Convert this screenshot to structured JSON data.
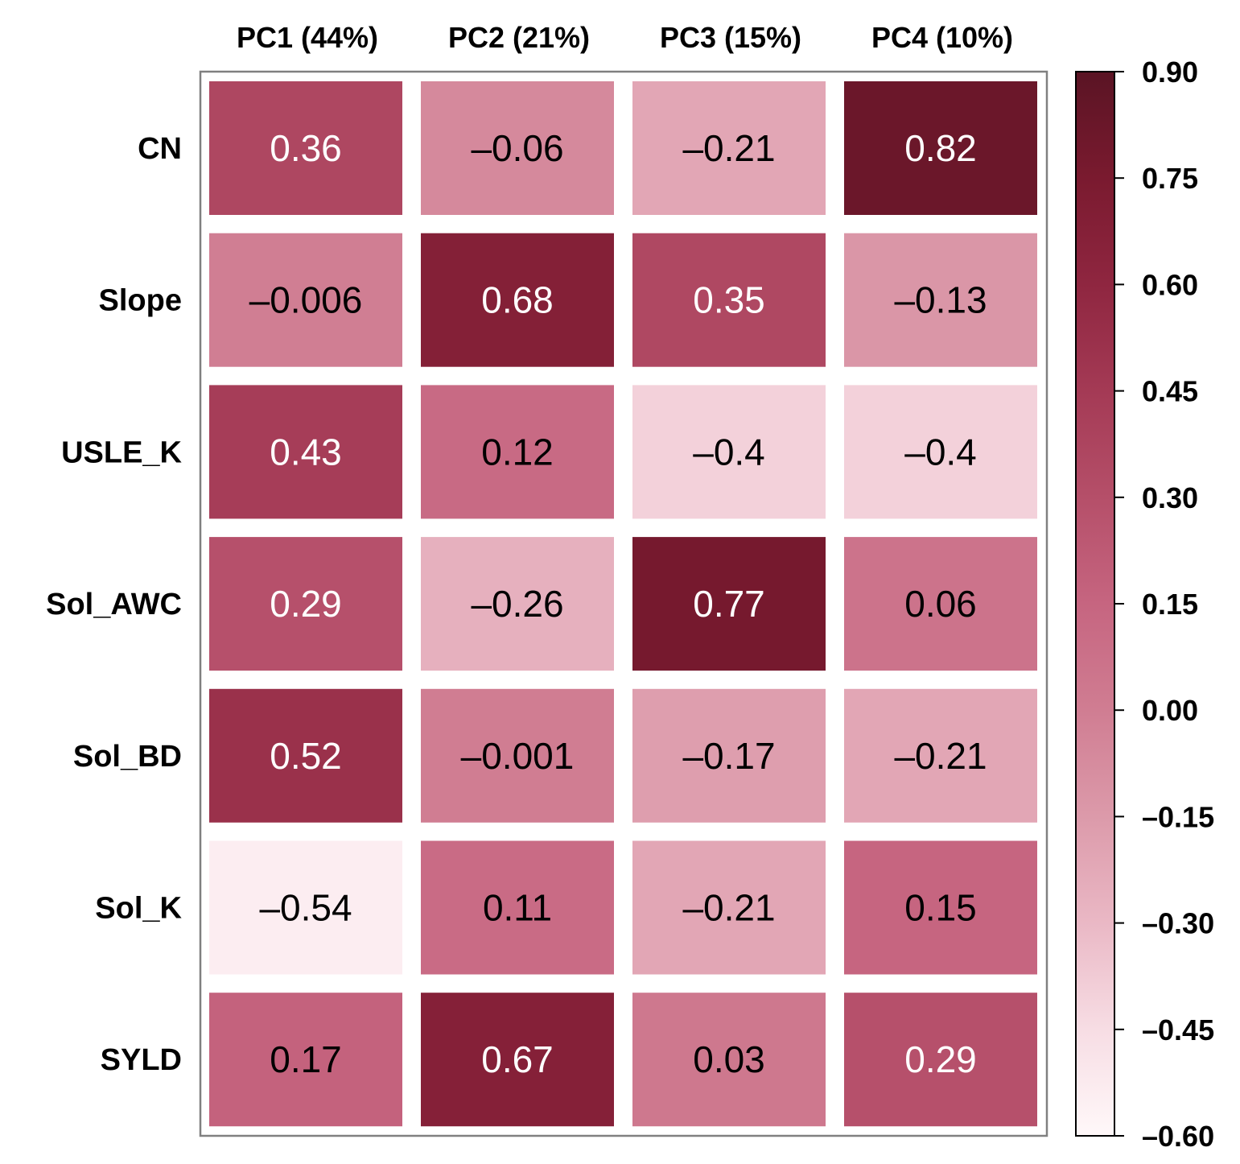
{
  "chart_data": {
    "type": "heatmap",
    "title": "",
    "columns": [
      "PC1 (44%)",
      "PC2 (21%)",
      "PC3 (15%)",
      "PC4 (10%)"
    ],
    "rows": [
      "CN",
      "Slope",
      "USLE_K",
      "Sol_AWC",
      "Sol_BD",
      "Sol_K",
      "SYLD"
    ],
    "values": [
      [
        0.36,
        -0.06,
        -0.21,
        0.82
      ],
      [
        -0.006,
        0.68,
        0.35,
        -0.13
      ],
      [
        0.43,
        0.12,
        -0.4,
        -0.4
      ],
      [
        0.29,
        -0.26,
        0.77,
        0.06
      ],
      [
        0.52,
        -0.001,
        -0.17,
        -0.21
      ],
      [
        -0.54,
        0.11,
        -0.21,
        0.15
      ],
      [
        0.17,
        0.67,
        0.03,
        0.29
      ]
    ],
    "labels": [
      [
        "0.36",
        "–0.06",
        "–0.21",
        "0.82"
      ],
      [
        "–0.006",
        "0.68",
        "0.35",
        "–0.13"
      ],
      [
        "0.43",
        "0.12",
        "–0.4",
        "–0.4"
      ],
      [
        "0.29",
        "–0.26",
        "0.77",
        "0.06"
      ],
      [
        "0.52",
        "–0.001",
        "–0.17",
        "–0.21"
      ],
      [
        "–0.54",
        "0.11",
        "–0.21",
        "0.15"
      ],
      [
        "0.17",
        "0.67",
        "0.03",
        "0.29"
      ]
    ],
    "colorbar": {
      "range": [
        -0.6,
        0.9
      ],
      "ticks": [
        0.9,
        0.75,
        0.6,
        0.45,
        0.3,
        0.15,
        0.0,
        -0.15,
        -0.3,
        -0.45,
        -0.6
      ],
      "tick_labels": [
        "0.90",
        "0.75",
        "0.60",
        "0.45",
        "0.30",
        "0.15",
        "0.00",
        "–0.15",
        "–0.30",
        "–0.45",
        "–0.60"
      ],
      "placement": "right"
    },
    "colormap": [
      {
        "v": -0.6,
        "color": "#fff8f9"
      },
      {
        "v": -0.45,
        "color": "#f7dde4"
      },
      {
        "v": -0.3,
        "color": "#eab8c5"
      },
      {
        "v": -0.15,
        "color": "#dc9aaa"
      },
      {
        "v": 0.0,
        "color": "#d07d92"
      },
      {
        "v": 0.15,
        "color": "#c66580"
      },
      {
        "v": 0.3,
        "color": "#b54f69"
      },
      {
        "v": 0.45,
        "color": "#a43a55"
      },
      {
        "v": 0.6,
        "color": "#8f2640"
      },
      {
        "v": 0.75,
        "color": "#7a1a2f"
      },
      {
        "v": 0.9,
        "color": "#5a1424"
      }
    ],
    "text_color_dark": "#000000",
    "text_color_light": "#ffffff",
    "frame_color": "#808080"
  }
}
